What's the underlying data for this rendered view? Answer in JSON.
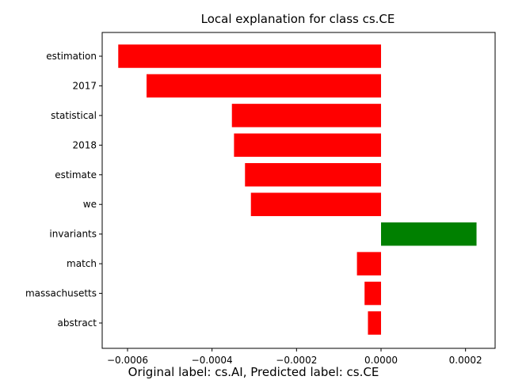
{
  "chart_data": {
    "type": "bar",
    "orientation": "horizontal",
    "title": "Local explanation for class cs.CE",
    "footer": "Original label: cs.AI, Predicted label: cs.CE",
    "categories": [
      "estimation",
      "2017",
      "statistical",
      "2018",
      "estimate",
      "we",
      "invariants",
      "match",
      "massachusetts",
      "abstract"
    ],
    "values": [
      -0.000622,
      -0.000555,
      -0.000353,
      -0.000348,
      -0.000322,
      -0.000308,
      0.000226,
      -5.7e-05,
      -3.9e-05,
      -3.1e-05
    ],
    "xlim": [
      -0.00066,
      0.00027
    ],
    "xticks": [
      -0.0006,
      -0.0004,
      -0.0002,
      0.0,
      0.0002
    ],
    "xtick_labels": [
      "−0.0006",
      "−0.0004",
      "−0.0002",
      "0.0000",
      "0.0002"
    ],
    "positive_color": "#008000",
    "negative_color": "#ff0000",
    "grid": false,
    "legend": "none"
  }
}
